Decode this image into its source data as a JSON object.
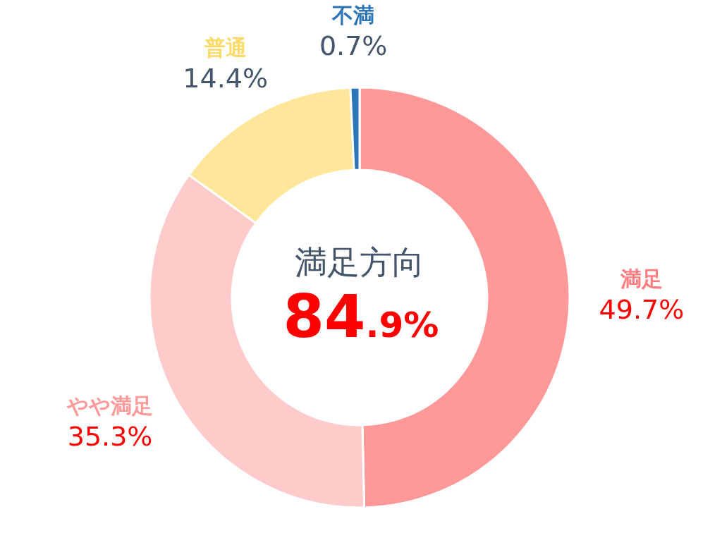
{
  "chart_data": {
    "type": "donut",
    "categories": [
      "満足",
      "やや満足",
      "普通",
      "不満"
    ],
    "values": [
      49.7,
      35.3,
      14.4,
      0.7
    ],
    "colors": [
      "#ff9999",
      "#ffcaca",
      "#ffe699",
      "#2e75b6"
    ],
    "value_labels": [
      "49.7%",
      "35.3%",
      "14.4%",
      "0.7%"
    ],
    "annotations": [
      "満足方向",
      "84.9%"
    ]
  }
}
